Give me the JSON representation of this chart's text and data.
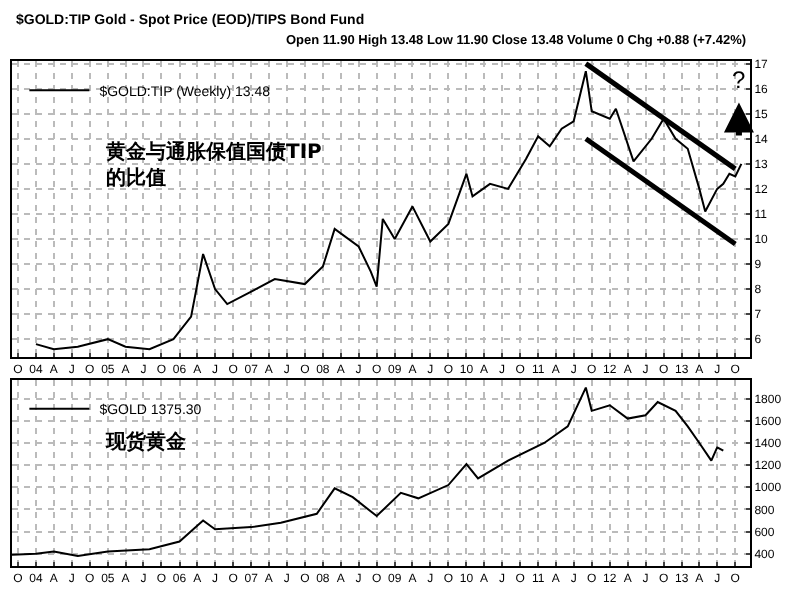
{
  "chart_data": [
    {
      "type": "line",
      "title": "$GOLD:TIP Gold - Spot Price (EOD)/TIPS Bond Fund",
      "subtitle": "Open 11.90 High 13.48 Low 11.90 Close 13.48 Volume 0 Chg +0.88 (+7.42%)",
      "x": [
        "2004-01",
        "2004-04",
        "2004-08",
        "2005-01",
        "2005-04",
        "2005-08",
        "2005-12",
        "2006-03",
        "2006-05",
        "2006-07",
        "2006-09",
        "2007-01",
        "2007-05",
        "2007-10",
        "2008-01",
        "2008-03",
        "2008-07",
        "2008-09",
        "2008-10",
        "2008-11",
        "2009-01",
        "2009-04",
        "2009-07",
        "2009-10",
        "2010-01",
        "2010-02",
        "2010-05",
        "2010-08",
        "2010-11",
        "2011-01",
        "2011-03",
        "2011-05",
        "2011-07",
        "2011-09",
        "2011-10",
        "2012-01",
        "2012-02",
        "2012-05",
        "2012-08",
        "2012-10",
        "2012-12",
        "2013-02",
        "2013-04",
        "2013-05",
        "2013-07",
        "2013-08",
        "2013-09",
        "2013-10",
        "2013-11"
      ],
      "series": [
        {
          "name": "$GOLD:TIP (Weekly) 13.48",
          "color": "#000000",
          "values": [
            5.8,
            5.6,
            5.7,
            6.0,
            5.7,
            5.6,
            6.0,
            6.9,
            9.4,
            8.0,
            7.4,
            7.9,
            8.4,
            8.2,
            8.9,
            10.4,
            9.7,
            8.7,
            8.1,
            10.8,
            10.0,
            11.3,
            9.9,
            10.6,
            12.6,
            11.7,
            12.2,
            12.0,
            13.2,
            14.1,
            13.7,
            14.4,
            14.7,
            16.7,
            15.1,
            14.8,
            15.2,
            13.1,
            14.0,
            14.8,
            14.0,
            13.6,
            12.0,
            11.1,
            12.0,
            12.2,
            12.6,
            12.5,
            13.0
          ]
        },
        {
          "type": "line",
          "color": "#000000",
          "x": [
            "2011-09",
            "2013-10"
          ],
          "values": [
            17.0,
            12.8
          ]
        },
        {
          "type": "line",
          "color": "#000000",
          "x": [
            "2011-09",
            "2013-10"
          ],
          "values": [
            14.0,
            9.8
          ]
        }
      ],
      "xlim": [
        "2003-09-01",
        "2013-12-15"
      ],
      "xticks": [
        {
          "value": "2003-10",
          "label": "O"
        },
        {
          "value": "2004-01",
          "label": "04"
        },
        {
          "value": "2004-04",
          "label": "A"
        },
        {
          "value": "2004-07",
          "label": "J"
        },
        {
          "value": "2004-10",
          "label": "O"
        },
        {
          "value": "2005-01",
          "label": "05"
        },
        {
          "value": "2005-04",
          "label": "A"
        },
        {
          "value": "2005-07",
          "label": "J"
        },
        {
          "value": "2005-10",
          "label": "O"
        },
        {
          "value": "2006-01",
          "label": "06"
        },
        {
          "value": "2006-04",
          "label": "A"
        },
        {
          "value": "2006-07",
          "label": "J"
        },
        {
          "value": "2006-10",
          "label": "O"
        },
        {
          "value": "2007-01",
          "label": "07"
        },
        {
          "value": "2007-04",
          "label": "A"
        },
        {
          "value": "2007-07",
          "label": "J"
        },
        {
          "value": "2007-10",
          "label": "O"
        },
        {
          "value": "2008-01",
          "label": "08"
        },
        {
          "value": "2008-04",
          "label": "A"
        },
        {
          "value": "2008-07",
          "label": "J"
        },
        {
          "value": "2008-10",
          "label": "O"
        },
        {
          "value": "2009-01",
          "label": "09"
        },
        {
          "value": "2009-04",
          "label": "A"
        },
        {
          "value": "2009-07",
          "label": "J"
        },
        {
          "value": "2009-10",
          "label": "O"
        },
        {
          "value": "2010-01",
          "label": "10"
        },
        {
          "value": "2010-04",
          "label": "A"
        },
        {
          "value": "2010-07",
          "label": "J"
        },
        {
          "value": "2010-10",
          "label": "O"
        },
        {
          "value": "2011-01",
          "label": "11"
        },
        {
          "value": "2011-04",
          "label": "A"
        },
        {
          "value": "2011-07",
          "label": "J"
        },
        {
          "value": "2011-10",
          "label": "O"
        },
        {
          "value": "2012-01",
          "label": "12"
        },
        {
          "value": "2012-04",
          "label": "A"
        },
        {
          "value": "2012-07",
          "label": "J"
        },
        {
          "value": "2012-10",
          "label": "O"
        },
        {
          "value": "2013-01",
          "label": "13"
        },
        {
          "value": "2013-04",
          "label": "A"
        },
        {
          "value": "2013-07",
          "label": "J"
        },
        {
          "value": "2013-10",
          "label": "O"
        }
      ],
      "ylim": [
        5.3,
        17.1
      ],
      "yticks": [
        6,
        7,
        8,
        9,
        10,
        11,
        12,
        13,
        14,
        15,
        16,
        17
      ],
      "grid": true,
      "legend": "top left",
      "annotations": [
        "黄金与通胀保值国债TIP\n的比值",
        "?"
      ]
    },
    {
      "type": "line",
      "x": [
        "2003-09",
        "2004-01",
        "2004-04",
        "2004-08",
        "2005-01",
        "2005-08",
        "2006-01",
        "2006-05",
        "2006-07",
        "2007-01",
        "2007-06",
        "2007-12",
        "2008-03",
        "2008-06",
        "2008-10",
        "2009-02",
        "2009-05",
        "2009-10",
        "2010-01",
        "2010-03",
        "2010-08",
        "2011-02",
        "2011-06",
        "2011-09",
        "2011-10",
        "2012-01",
        "2012-04",
        "2012-07",
        "2012-09",
        "2012-12",
        "2013-02",
        "2013-04",
        "2013-06",
        "2013-07",
        "2013-08"
      ],
      "series": [
        {
          "name": "$GOLD 1375.30",
          "color": "#000000",
          "values": [
            390,
            400,
            420,
            380,
            420,
            440,
            510,
            700,
            620,
            640,
            680,
            760,
            990,
            910,
            740,
            950,
            900,
            1020,
            1210,
            1080,
            1240,
            1400,
            1550,
            1900,
            1690,
            1740,
            1620,
            1650,
            1770,
            1690,
            1550,
            1400,
            1240,
            1360,
            1330
          ]
        }
      ],
      "xlim": [
        "2003-09-01",
        "2013-12-15"
      ],
      "xticks": [
        {
          "value": "2003-10",
          "label": "O"
        },
        {
          "value": "2004-01",
          "label": "04"
        },
        {
          "value": "2004-04",
          "label": "A"
        },
        {
          "value": "2004-07",
          "label": "J"
        },
        {
          "value": "2004-10",
          "label": "O"
        },
        {
          "value": "2005-01",
          "label": "05"
        },
        {
          "value": "2005-04",
          "label": "A"
        },
        {
          "value": "2005-07",
          "label": "J"
        },
        {
          "value": "2005-10",
          "label": "O"
        },
        {
          "value": "2006-01",
          "label": "06"
        },
        {
          "value": "2006-04",
          "label": "A"
        },
        {
          "value": "2006-07",
          "label": "J"
        },
        {
          "value": "2006-10",
          "label": "O"
        },
        {
          "value": "2007-01",
          "label": "07"
        },
        {
          "value": "2007-04",
          "label": "A"
        },
        {
          "value": "2007-07",
          "label": "J"
        },
        {
          "value": "2007-10",
          "label": "O"
        },
        {
          "value": "2008-01",
          "label": "08"
        },
        {
          "value": "2008-04",
          "label": "A"
        },
        {
          "value": "2008-07",
          "label": "J"
        },
        {
          "value": "2008-10",
          "label": "O"
        },
        {
          "value": "2009-01",
          "label": "09"
        },
        {
          "value": "2009-04",
          "label": "A"
        },
        {
          "value": "2009-07",
          "label": "J"
        },
        {
          "value": "2009-10",
          "label": "O"
        },
        {
          "value": "2010-01",
          "label": "10"
        },
        {
          "value": "2010-04",
          "label": "A"
        },
        {
          "value": "2010-07",
          "label": "J"
        },
        {
          "value": "2010-10",
          "label": "O"
        },
        {
          "value": "2011-01",
          "label": "11"
        },
        {
          "value": "2011-04",
          "label": "A"
        },
        {
          "value": "2011-07",
          "label": "J"
        },
        {
          "value": "2011-10",
          "label": "O"
        },
        {
          "value": "2012-01",
          "label": "12"
        },
        {
          "value": "2012-04",
          "label": "A"
        },
        {
          "value": "2012-07",
          "label": "J"
        },
        {
          "value": "2012-10",
          "label": "O"
        },
        {
          "value": "2013-01",
          "label": "13"
        },
        {
          "value": "2013-04",
          "label": "A"
        },
        {
          "value": "2013-07",
          "label": "J"
        },
        {
          "value": "2013-10",
          "label": "O"
        }
      ],
      "ylim": [
        290,
        1970
      ],
      "yticks": [
        400,
        600,
        800,
        1000,
        1200,
        1400,
        1600,
        1800
      ],
      "grid": true,
      "legend": "top left",
      "annotations": [
        "现货黄金"
      ]
    }
  ]
}
